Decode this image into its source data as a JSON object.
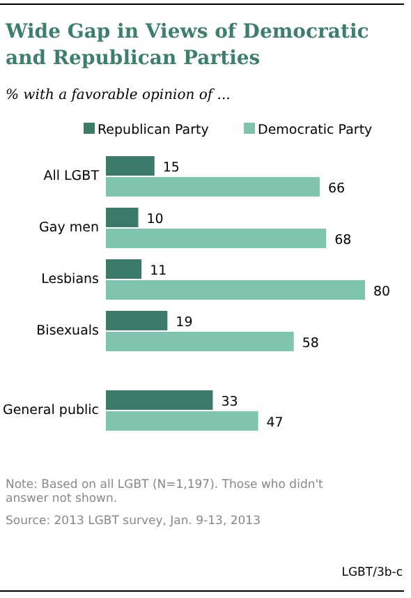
{
  "chart_data": {
    "type": "bar",
    "orientation": "horizontal",
    "title": "Wide Gap in Views of Democratic and Republican Parties",
    "subtitle": "% with a favorable opinion of ...",
    "categories": [
      "All LGBT",
      "Gay men",
      "Lesbians",
      "Bisexuals",
      "General public"
    ],
    "series": [
      {
        "name": "Republican Party",
        "color": "#3b7a68",
        "values": [
          15,
          10,
          11,
          19,
          33
        ]
      },
      {
        "name": "Democratic Party",
        "color": "#7fc4ae",
        "values": [
          66,
          68,
          80,
          58,
          47
        ]
      }
    ],
    "data_labels": true,
    "legend": "top",
    "annotations": [
      "Note: Based on all LGBT (N=1,197). Those who didn't answer not shown.",
      "Source: 2013 LGBT survey, Jan. 9-13, 2013",
      "LGBT/3b-c"
    ]
  }
}
